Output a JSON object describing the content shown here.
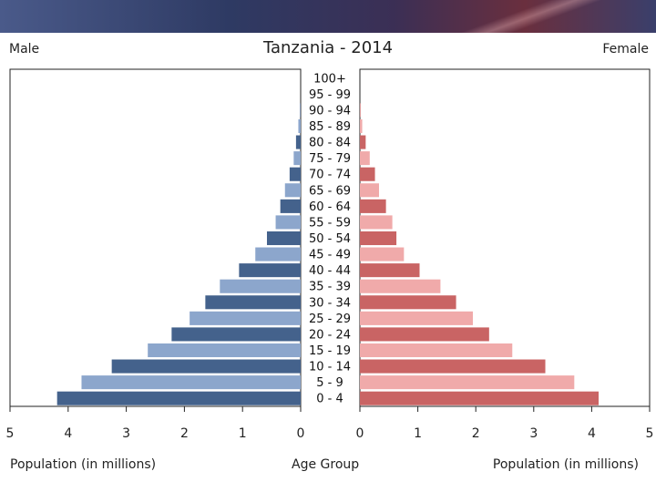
{
  "header": {
    "male_label": "Male",
    "female_label": "Female"
  },
  "chart_data": {
    "type": "bar",
    "orientation": "horizontal-pyramid",
    "title": "Tanzania - 2014",
    "categories": [
      "100+",
      "95 - 99",
      "90 - 94",
      "85 - 89",
      "80 - 84",
      "75 - 79",
      "70 - 74",
      "65 - 69",
      "60 - 64",
      "55 - 59",
      "50 - 54",
      "45 - 49",
      "40 - 44",
      "35 - 39",
      "30 - 34",
      "25 - 29",
      "20 - 24",
      "15 - 19",
      "10 - 14",
      "5 - 9",
      "0 - 4"
    ],
    "series": [
      {
        "name": "Male",
        "values": [
          0.0,
          0.0,
          0.01,
          0.04,
          0.08,
          0.12,
          0.19,
          0.27,
          0.35,
          0.43,
          0.58,
          0.78,
          1.06,
          1.39,
          1.64,
          1.91,
          2.22,
          2.63,
          3.25,
          3.77,
          4.19
        ]
      },
      {
        "name": "Female",
        "values": [
          0.0,
          0.0,
          0.01,
          0.04,
          0.1,
          0.17,
          0.26,
          0.33,
          0.45,
          0.56,
          0.63,
          0.76,
          1.03,
          1.39,
          1.66,
          1.95,
          2.23,
          2.63,
          3.2,
          3.7,
          4.12
        ]
      }
    ],
    "x_ticks_left": [
      "5",
      "4",
      "3",
      "2",
      "1",
      "0"
    ],
    "x_ticks_right": [
      "0",
      "1",
      "2",
      "3",
      "4",
      "5"
    ],
    "xlim": [
      0,
      5
    ],
    "xlabel_left": "Population (in millions)",
    "xlabel_center": "Age Group",
    "xlabel_right": "Population (in millions)",
    "colors": {
      "male_dark": "#44628c",
      "male_light": "#8ca6cc",
      "female_dark": "#c96464",
      "female_light": "#f0aaaa"
    }
  }
}
